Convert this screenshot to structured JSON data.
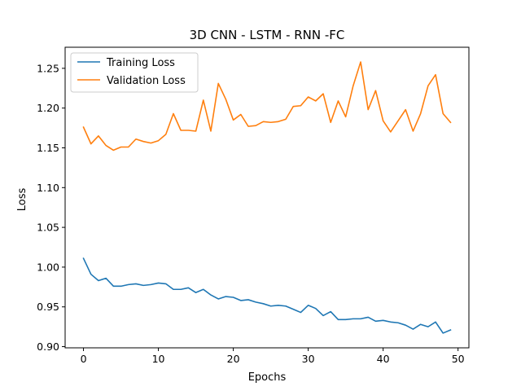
{
  "chart_data": {
    "type": "line",
    "title": "3D CNN - LSTM - RNN -FC",
    "xlabel": "Epochs",
    "ylabel": "Loss",
    "xlim": [
      -2.45,
      51.45
    ],
    "ylim": [
      0.8985,
      1.2765
    ],
    "xticks": [
      0,
      10,
      20,
      30,
      40,
      50
    ],
    "yticks": [
      0.9,
      0.95,
      1.0,
      1.05,
      1.1,
      1.15,
      1.2,
      1.25
    ],
    "ytick_labels": [
      "0.90",
      "0.95",
      "1.00",
      "1.05",
      "1.10",
      "1.15",
      "1.20",
      "1.25"
    ],
    "grid": false,
    "legend": "upper-left",
    "x": [
      0,
      1,
      2,
      3,
      4,
      5,
      6,
      7,
      8,
      9,
      10,
      11,
      12,
      13,
      14,
      15,
      16,
      17,
      18,
      19,
      20,
      21,
      22,
      23,
      24,
      25,
      26,
      27,
      28,
      29,
      30,
      31,
      32,
      33,
      34,
      35,
      36,
      37,
      38,
      39,
      40,
      41,
      42,
      43,
      44,
      45,
      46,
      47,
      48,
      49
    ],
    "series": [
      {
        "name": "Training Loss",
        "color": "#1f77b4",
        "values": [
          1.011,
          0.991,
          0.983,
          0.986,
          0.976,
          0.976,
          0.978,
          0.979,
          0.977,
          0.978,
          0.98,
          0.979,
          0.972,
          0.972,
          0.974,
          0.968,
          0.972,
          0.965,
          0.96,
          0.963,
          0.962,
          0.958,
          0.959,
          0.956,
          0.954,
          0.951,
          0.952,
          0.951,
          0.947,
          0.943,
          0.952,
          0.948,
          0.939,
          0.944,
          0.934,
          0.934,
          0.935,
          0.935,
          0.937,
          0.932,
          0.933,
          0.931,
          0.93,
          0.927,
          0.922,
          0.928,
          0.925,
          0.931,
          0.917,
          0.921
        ]
      },
      {
        "name": "Validation Loss",
        "color": "#ff7f0e",
        "values": [
          1.176,
          1.155,
          1.165,
          1.153,
          1.147,
          1.151,
          1.151,
          1.161,
          1.158,
          1.156,
          1.159,
          1.167,
          1.193,
          1.172,
          1.172,
          1.171,
          1.21,
          1.171,
          1.231,
          1.211,
          1.185,
          1.192,
          1.177,
          1.178,
          1.183,
          1.182,
          1.183,
          1.186,
          1.202,
          1.203,
          1.214,
          1.209,
          1.218,
          1.182,
          1.209,
          1.189,
          1.228,
          1.258,
          1.198,
          1.222,
          1.184,
          1.17,
          1.184,
          1.198,
          1.171,
          1.193,
          1.228,
          1.242,
          1.193,
          1.182
        ]
      }
    ]
  }
}
